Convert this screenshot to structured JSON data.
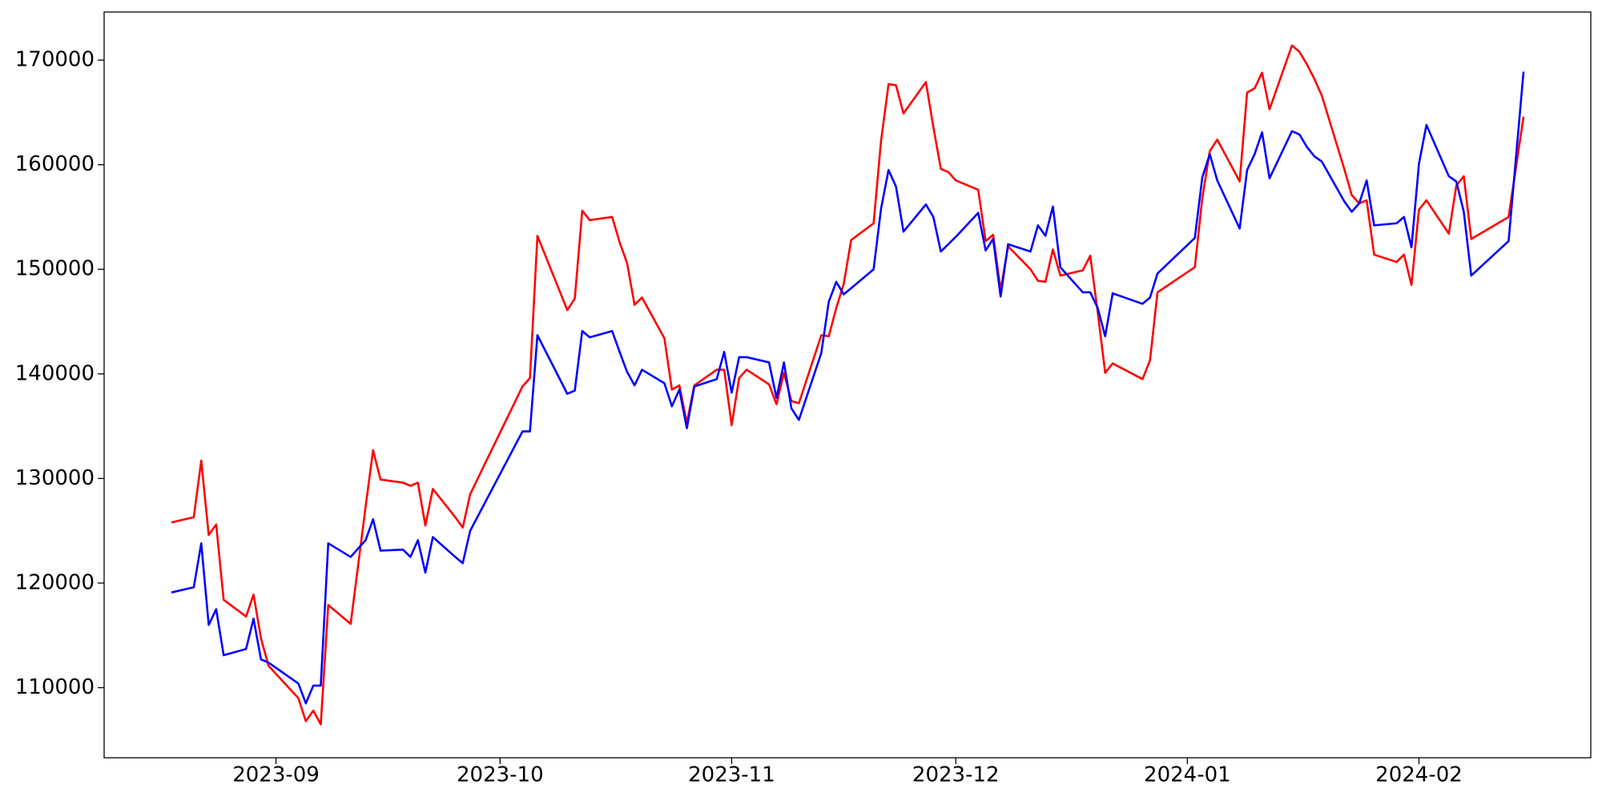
{
  "chart_data": {
    "type": "line",
    "x": [
      "2023-08-18",
      "2023-08-21",
      "2023-08-22",
      "2023-08-23",
      "2023-08-24",
      "2023-08-25",
      "2023-08-28",
      "2023-08-29",
      "2023-08-30",
      "2023-08-31",
      "2023-09-04",
      "2023-09-05",
      "2023-09-06",
      "2023-09-07",
      "2023-09-08",
      "2023-09-11",
      "2023-09-13",
      "2023-09-14",
      "2023-09-15",
      "2023-09-18",
      "2023-09-19",
      "2023-09-20",
      "2023-09-21",
      "2023-09-22",
      "2023-09-25",
      "2023-09-26",
      "2023-09-27",
      "2023-10-04",
      "2023-10-05",
      "2023-10-06",
      "2023-10-10",
      "2023-10-11",
      "2023-10-12",
      "2023-10-13",
      "2023-10-16",
      "2023-10-17",
      "2023-10-18",
      "2023-10-19",
      "2023-10-20",
      "2023-10-23",
      "2023-10-24",
      "2023-10-25",
      "2023-10-26",
      "2023-10-27",
      "2023-10-30",
      "2023-10-31",
      "2023-11-01",
      "2023-11-02",
      "2023-11-03",
      "2023-11-06",
      "2023-11-07",
      "2023-11-08",
      "2023-11-09",
      "2023-11-10",
      "2023-11-13",
      "2023-11-14",
      "2023-11-15",
      "2023-11-16",
      "2023-11-17",
      "2023-11-20",
      "2023-11-21",
      "2023-11-22",
      "2023-11-23",
      "2023-11-24",
      "2023-11-27",
      "2023-11-28",
      "2023-11-29",
      "2023-11-30",
      "2023-12-01",
      "2023-12-04",
      "2023-12-05",
      "2023-12-06",
      "2023-12-07",
      "2023-12-08",
      "2023-12-11",
      "2023-12-12",
      "2023-12-13",
      "2023-12-14",
      "2023-12-15",
      "2023-12-18",
      "2023-12-19",
      "2023-12-20",
      "2023-12-21",
      "2023-12-22",
      "2023-12-26",
      "2023-12-27",
      "2023-12-28",
      "2024-01-02",
      "2024-01-03",
      "2024-01-04",
      "2024-01-05",
      "2024-01-08",
      "2024-01-09",
      "2024-01-10",
      "2024-01-11",
      "2024-01-12",
      "2024-01-15",
      "2024-01-16",
      "2024-01-17",
      "2024-01-18",
      "2024-01-19",
      "2024-01-22",
      "2024-01-23",
      "2024-01-24",
      "2024-01-25",
      "2024-01-26",
      "2024-01-29",
      "2024-01-30",
      "2024-01-31",
      "2024-02-01",
      "2024-02-02",
      "2024-02-05",
      "2024-02-06",
      "2024-02-07",
      "2024-02-08",
      "2024-02-13",
      "2024-02-15"
    ],
    "series": [
      {
        "color": "red",
        "values": [
          125800,
          126300,
          131700,
          124600,
          125600,
          118400,
          116800,
          118900,
          114700,
          112100,
          109000,
          106800,
          107800,
          106500,
          117900,
          116100,
          127300,
          132700,
          129900,
          129600,
          129300,
          129600,
          125500,
          129000,
          126300,
          125300,
          128500,
          138800,
          139600,
          153200,
          146100,
          147200,
          155600,
          154700,
          155000,
          152600,
          150600,
          146600,
          147300,
          143400,
          138500,
          138900,
          135300,
          138900,
          140400,
          140400,
          135100,
          139600,
          140400,
          139000,
          137100,
          140100,
          137400,
          137200,
          143700,
          143600,
          146300,
          148600,
          152800,
          154400,
          162300,
          167700,
          167600,
          164900,
          167900,
          163600,
          159600,
          159300,
          158500,
          157600,
          152700,
          153300,
          148000,
          152200,
          150000,
          148900,
          148800,
          151900,
          149400,
          149900,
          151300,
          145900,
          140100,
          141000,
          139500,
          141300,
          147800,
          150200,
          156800,
          161300,
          162400,
          158400,
          166900,
          167300,
          168800,
          165300,
          171400,
          170800,
          169600,
          168200,
          166600,
          159600,
          157100,
          156300,
          156600,
          151400,
          150700,
          151400,
          148500,
          155700,
          156600,
          153400,
          158000,
          158900,
          152900,
          155000,
          164600
        ]
      },
      {
        "color": "blue",
        "values": [
          119100,
          119600,
          123800,
          116000,
          117500,
          113100,
          113700,
          116600,
          112700,
          112400,
          110400,
          108500,
          110200,
          110200,
          123800,
          122500,
          124100,
          126100,
          123100,
          123200,
          122500,
          124100,
          121000,
          124400,
          122500,
          121900,
          125000,
          134500,
          134500,
          143700,
          138100,
          138400,
          144100,
          143500,
          144100,
          142100,
          140200,
          138900,
          140400,
          139100,
          136900,
          138500,
          134800,
          138800,
          139500,
          142100,
          138200,
          141600,
          141600,
          141100,
          137700,
          141100,
          136700,
          135600,
          142000,
          146900,
          148800,
          147600,
          148200,
          150000,
          155800,
          159500,
          157900,
          153600,
          156200,
          155000,
          151700,
          152400,
          153100,
          155400,
          151800,
          152900,
          147400,
          152400,
          151700,
          154200,
          153200,
          156000,
          150200,
          147800,
          147800,
          146300,
          143600,
          147700,
          146700,
          147300,
          149600,
          153000,
          158800,
          161000,
          158500,
          153900,
          159500,
          161000,
          163100,
          158700,
          163200,
          162900,
          161700,
          160800,
          160300,
          156500,
          155500,
          156300,
          158500,
          154200,
          154400,
          155000,
          152100,
          160100,
          163800,
          158900,
          158400,
          155500,
          149400,
          152700,
          168900
        ]
      }
    ],
    "xlim": [
      "2023-08-09",
      "2024-02-24"
    ],
    "xticks": [
      {
        "value": "2023-09-01",
        "label": "2023-09"
      },
      {
        "value": "2023-10-01",
        "label": "2023-10"
      },
      {
        "value": "2023-11-01",
        "label": "2023-11"
      },
      {
        "value": "2023-12-01",
        "label": "2023-12"
      },
      {
        "value": "2024-01-01",
        "label": "2024-01"
      },
      {
        "value": "2024-02-01",
        "label": "2024-02"
      }
    ],
    "ylim": [
      103300,
      174600
    ],
    "yticks": [
      110000,
      120000,
      130000,
      140000,
      150000,
      160000,
      170000
    ],
    "grid": false
  }
}
